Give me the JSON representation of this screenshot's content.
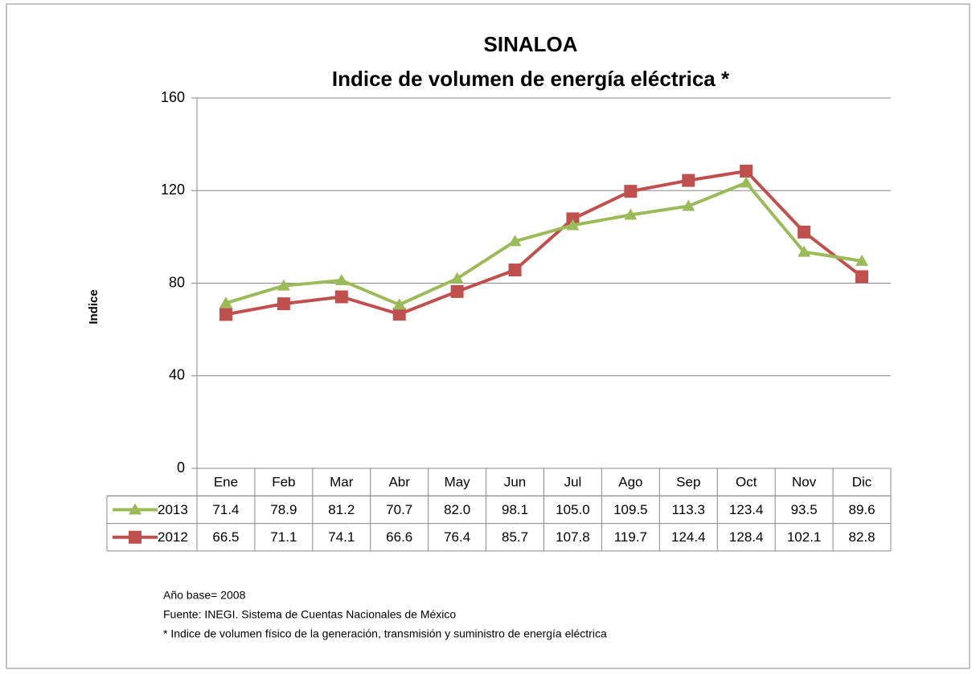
{
  "chart_data": {
    "type": "line",
    "title": "SINALOA",
    "subtitle": "Indice de volumen de energía eléctrica *",
    "y_label": "Indice",
    "categories": [
      "Ene",
      "Feb",
      "Mar",
      "Abr",
      "May",
      "Jun",
      "Jul",
      "Ago",
      "Sep",
      "Oct",
      "Nov",
      "Dic"
    ],
    "series": [
      {
        "name": "2013",
        "color": "#9bbb59",
        "marker": "triangle",
        "values": [
          71.4,
          78.9,
          81.2,
          70.7,
          82.0,
          98.1,
          105.0,
          109.5,
          113.3,
          123.4,
          93.5,
          89.6
        ],
        "value_labels": [
          "71.4",
          "78.9",
          "81.2",
          "70.7",
          "82.0",
          "98.1",
          "105.0",
          "109.5",
          "113.3",
          "123.4",
          "93.5",
          "89.6"
        ]
      },
      {
        "name": "2012",
        "color": "#c0504d",
        "marker": "square",
        "values": [
          66.5,
          71.1,
          74.1,
          66.6,
          76.4,
          85.7,
          107.8,
          119.7,
          124.4,
          128.4,
          102.1,
          82.8
        ],
        "value_labels": [
          "66.5",
          "71.1",
          "74.1",
          "66.6",
          "76.4",
          "85.7",
          "107.8",
          "119.7",
          "124.4",
          "128.4",
          "102.1",
          "82.8"
        ]
      }
    ],
    "ylim": [
      0,
      160
    ],
    "yticks": [
      0,
      40,
      80,
      120,
      160
    ],
    "grid": true,
    "notes": [
      "Año base= 2008",
      "Fuente: INEGI. Sistema de Cuentas Nacionales de México",
      "* Indice de volumen físico de la generación, transmisión y suministro de energía eléctrica"
    ]
  }
}
